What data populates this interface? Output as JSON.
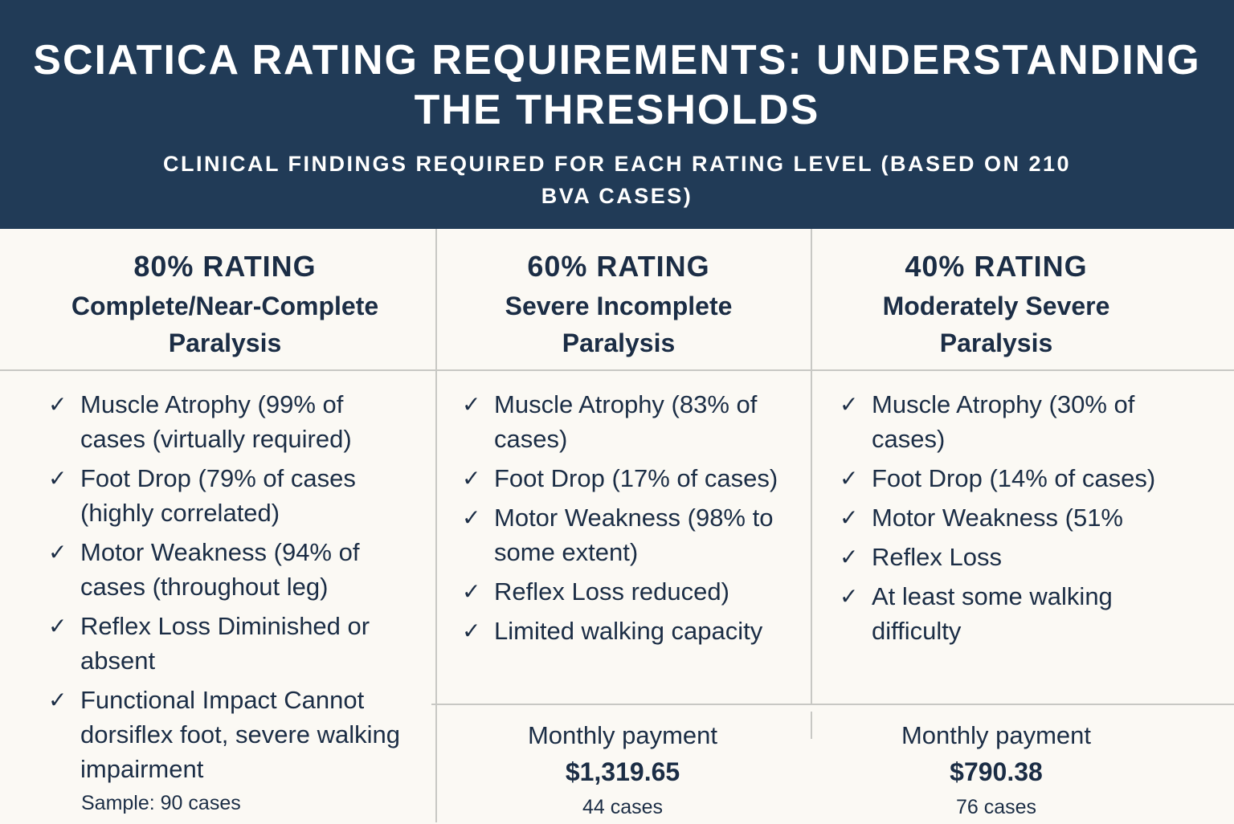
{
  "header": {
    "title": "Sciatica Rating Requirements: Understanding the Thresholds",
    "subtitle": "Clinical findings required for each rating level (based on 210 BVA cases)"
  },
  "columns": [
    {
      "rating": "80% RATING",
      "subtitle": "Complete/Near-Complete Paralysis",
      "items": [
        "Muscle Atrophy (99% of cases (virtually required)",
        "Foot Drop (79% of cases (highly correlated)",
        "Motor Weakness (94% of cases (throughout leg)",
        "Reflex Loss Diminished or absent",
        "Functional Impact Cannot dorsiflex foot, severe walking impairment"
      ],
      "sample": "Sample: 90 cases"
    },
    {
      "rating": "60% RATING",
      "subtitle": "Severe Incomplete Paralysis",
      "items": [
        "Muscle Atrophy (83% of cases)",
        "Foot Drop (17% of cases)",
        "Motor Weakness (98% to some extent)",
        "Reflex Loss reduced)",
        "Limited walking capacity"
      ],
      "payment_label": "Monthly payment",
      "payment": "$1,319.65",
      "cases": "44 cases"
    },
    {
      "rating": "40% RATING",
      "subtitle": "Moderately Severe Paralysis",
      "items": [
        "Muscle Atrophy (30% of cases)",
        "Foot Drop (14% of cases)",
        "Motor Weakness (51%",
        "Reflex Loss",
        "At least some walking difficulty"
      ],
      "payment_label": "Monthly payment",
      "payment": "$790.38",
      "cases": "76 cases"
    }
  ],
  "icons": {
    "check": "checkmark-icon"
  },
  "colors": {
    "header_bg": "#213b57",
    "text": "#1b2d45",
    "background": "#fbf9f4"
  }
}
